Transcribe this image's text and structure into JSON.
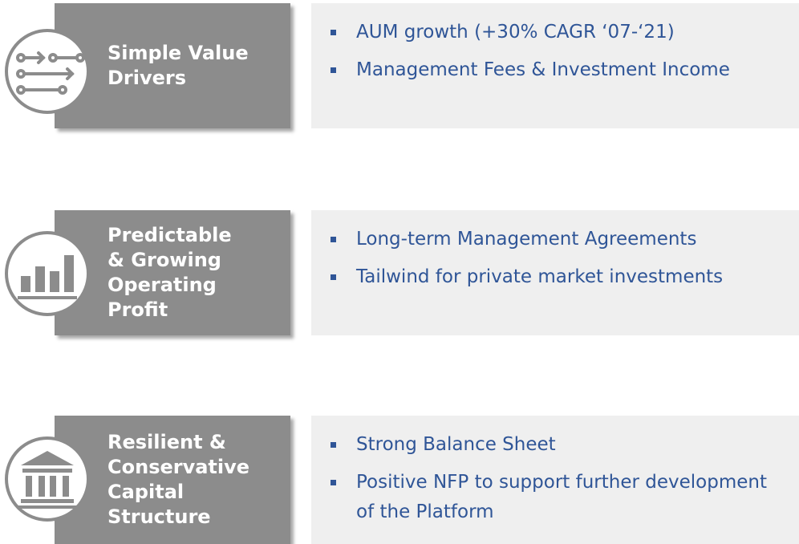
{
  "sections": [
    {
      "title_lines": [
        "Simple Value",
        "Drivers"
      ],
      "bullets": [
        "AUM growth (+30% CAGR ‘07-‘21)",
        "Management Fees & Investment Income"
      ]
    },
    {
      "title_lines": [
        "Predictable",
        "& Growing",
        "Operating",
        "Profit"
      ],
      "bullets": [
        "Long-term Management Agreements",
        "Tailwind for private market investments"
      ]
    },
    {
      "title_lines": [
        "Resilient &",
        "Conservative",
        "Capital",
        "Structure"
      ],
      "bullets": [
        "Strong Balance Sheet",
        "Positive NFP to support further development of the Platform"
      ]
    }
  ]
}
